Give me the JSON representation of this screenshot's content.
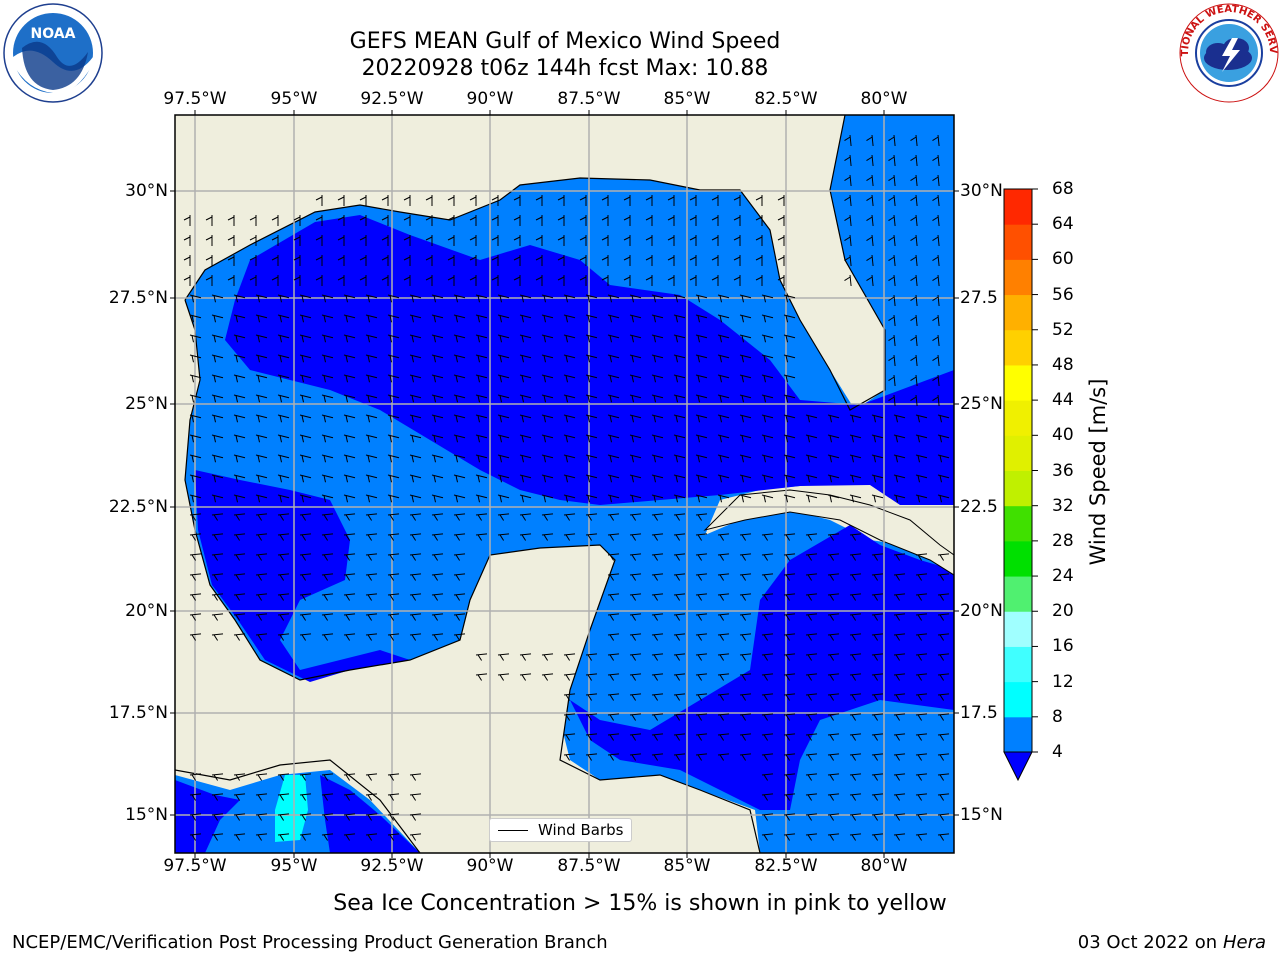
{
  "header": {
    "title_line1": "GEFS MEAN Gulf of Mexico Wind Speed",
    "title_line2": "20220928 t06z 144h fcst   Max: 10.88"
  },
  "logos": {
    "left": "NOAA",
    "right": "NATIONAL WEATHER SERVICE"
  },
  "map": {
    "lon_ticks": [
      "97.5°W",
      "95°W",
      "92.5°W",
      "90°W",
      "87.5°W",
      "85°W",
      "82.5°W",
      "80°W"
    ],
    "lat_ticks_left": [
      "30°N",
      "27.5°N",
      "25°N",
      "22.5°N",
      "20°N",
      "17.5°N",
      "15°N"
    ],
    "lat_ticks_right": [
      "30°N",
      "27.5",
      "25°N",
      "22.5",
      "20°N",
      "17.5",
      "15°N"
    ],
    "legend_label": "Wind Barbs",
    "colors": {
      "land": "#efeedd",
      "ocean_4": "#0000ff",
      "ocean_8": "#0080ff",
      "ocean_12": "#00ffff",
      "grid": "#b0b0b0"
    }
  },
  "colorbar": {
    "title": "Wind Speed [m/s]",
    "labels": [
      "4",
      "8",
      "12",
      "16",
      "20",
      "24",
      "28",
      "32",
      "36",
      "40",
      "44",
      "48",
      "52",
      "56",
      "60",
      "64",
      "68"
    ],
    "colors": [
      "#0080ff",
      "#00ffff",
      "#40ffff",
      "#a0ffff",
      "#50f070",
      "#00e000",
      "#40e000",
      "#c0f000",
      "#e0f000",
      "#f0f000",
      "#ffff00",
      "#ffd000",
      "#ffb000",
      "#ff8000",
      "#ff5000",
      "#ff2800",
      "#ff0000"
    ],
    "under_color": "#0000ff"
  },
  "footer": {
    "note": "Sea Ice Concentration > 15% is shown in pink to yellow",
    "org": "NCEP/EMC/Verification Post Processing Product Generation Branch",
    "date": "03 Oct 2022 on ",
    "machine": "Hera"
  }
}
